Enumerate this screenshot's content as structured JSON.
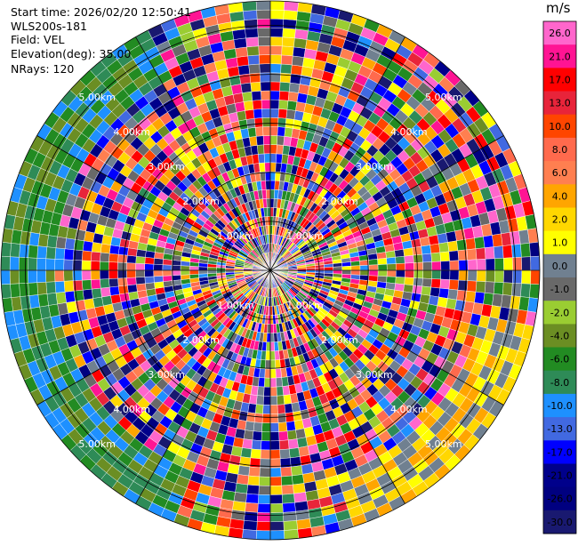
{
  "header": {
    "start_time": "Start time: 2026/02/20 12:50:41",
    "instrument": "WLS200s-181",
    "field": "Field: VEL",
    "elevation": "Elevation(deg): 35.00",
    "nrays": "NRays: 120"
  },
  "colorbar": {
    "unit": "m/s",
    "ticks": [
      "26.0",
      "21.0",
      "17.0",
      "13.0",
      "10.0",
      "8.0",
      "6.0",
      "4.0",
      "2.0",
      "1.0",
      "0.0",
      "-1.0",
      "-2.0",
      "-4.0",
      "-6.0",
      "-8.0",
      "-10.0",
      "-13.0",
      "-17.0",
      "-21.0",
      "-26.0",
      "-30.0"
    ],
    "colors": [
      "#ff66cc",
      "#ff1493",
      "#ff0000",
      "#e8243a",
      "#ff4500",
      "#ff6a4d",
      "#ff7f50",
      "#ffa500",
      "#ffd700",
      "#ffff00",
      "#708090",
      "#696969",
      "#9acd32",
      "#6b8e23",
      "#228b22",
      "#2e8b57",
      "#1e90ff",
      "#4169e1",
      "#0000ff",
      "#00008b",
      "#000080",
      "#191970"
    ]
  },
  "chart_data": {
    "type": "heatmap",
    "subtype": "ppi",
    "field": "VEL",
    "units": "m/s",
    "nrays": 120,
    "elevation_deg": 35.0,
    "range_max_km": 5.5,
    "range_rings_km": [
      1.0,
      2.0,
      3.0,
      4.0,
      5.0
    ],
    "range_ring_labels": [
      "1.00km",
      "2.00km",
      "3.00km",
      "4.00km",
      "5.00km"
    ],
    "value_range": [
      -30.0,
      26.0
    ]
  }
}
